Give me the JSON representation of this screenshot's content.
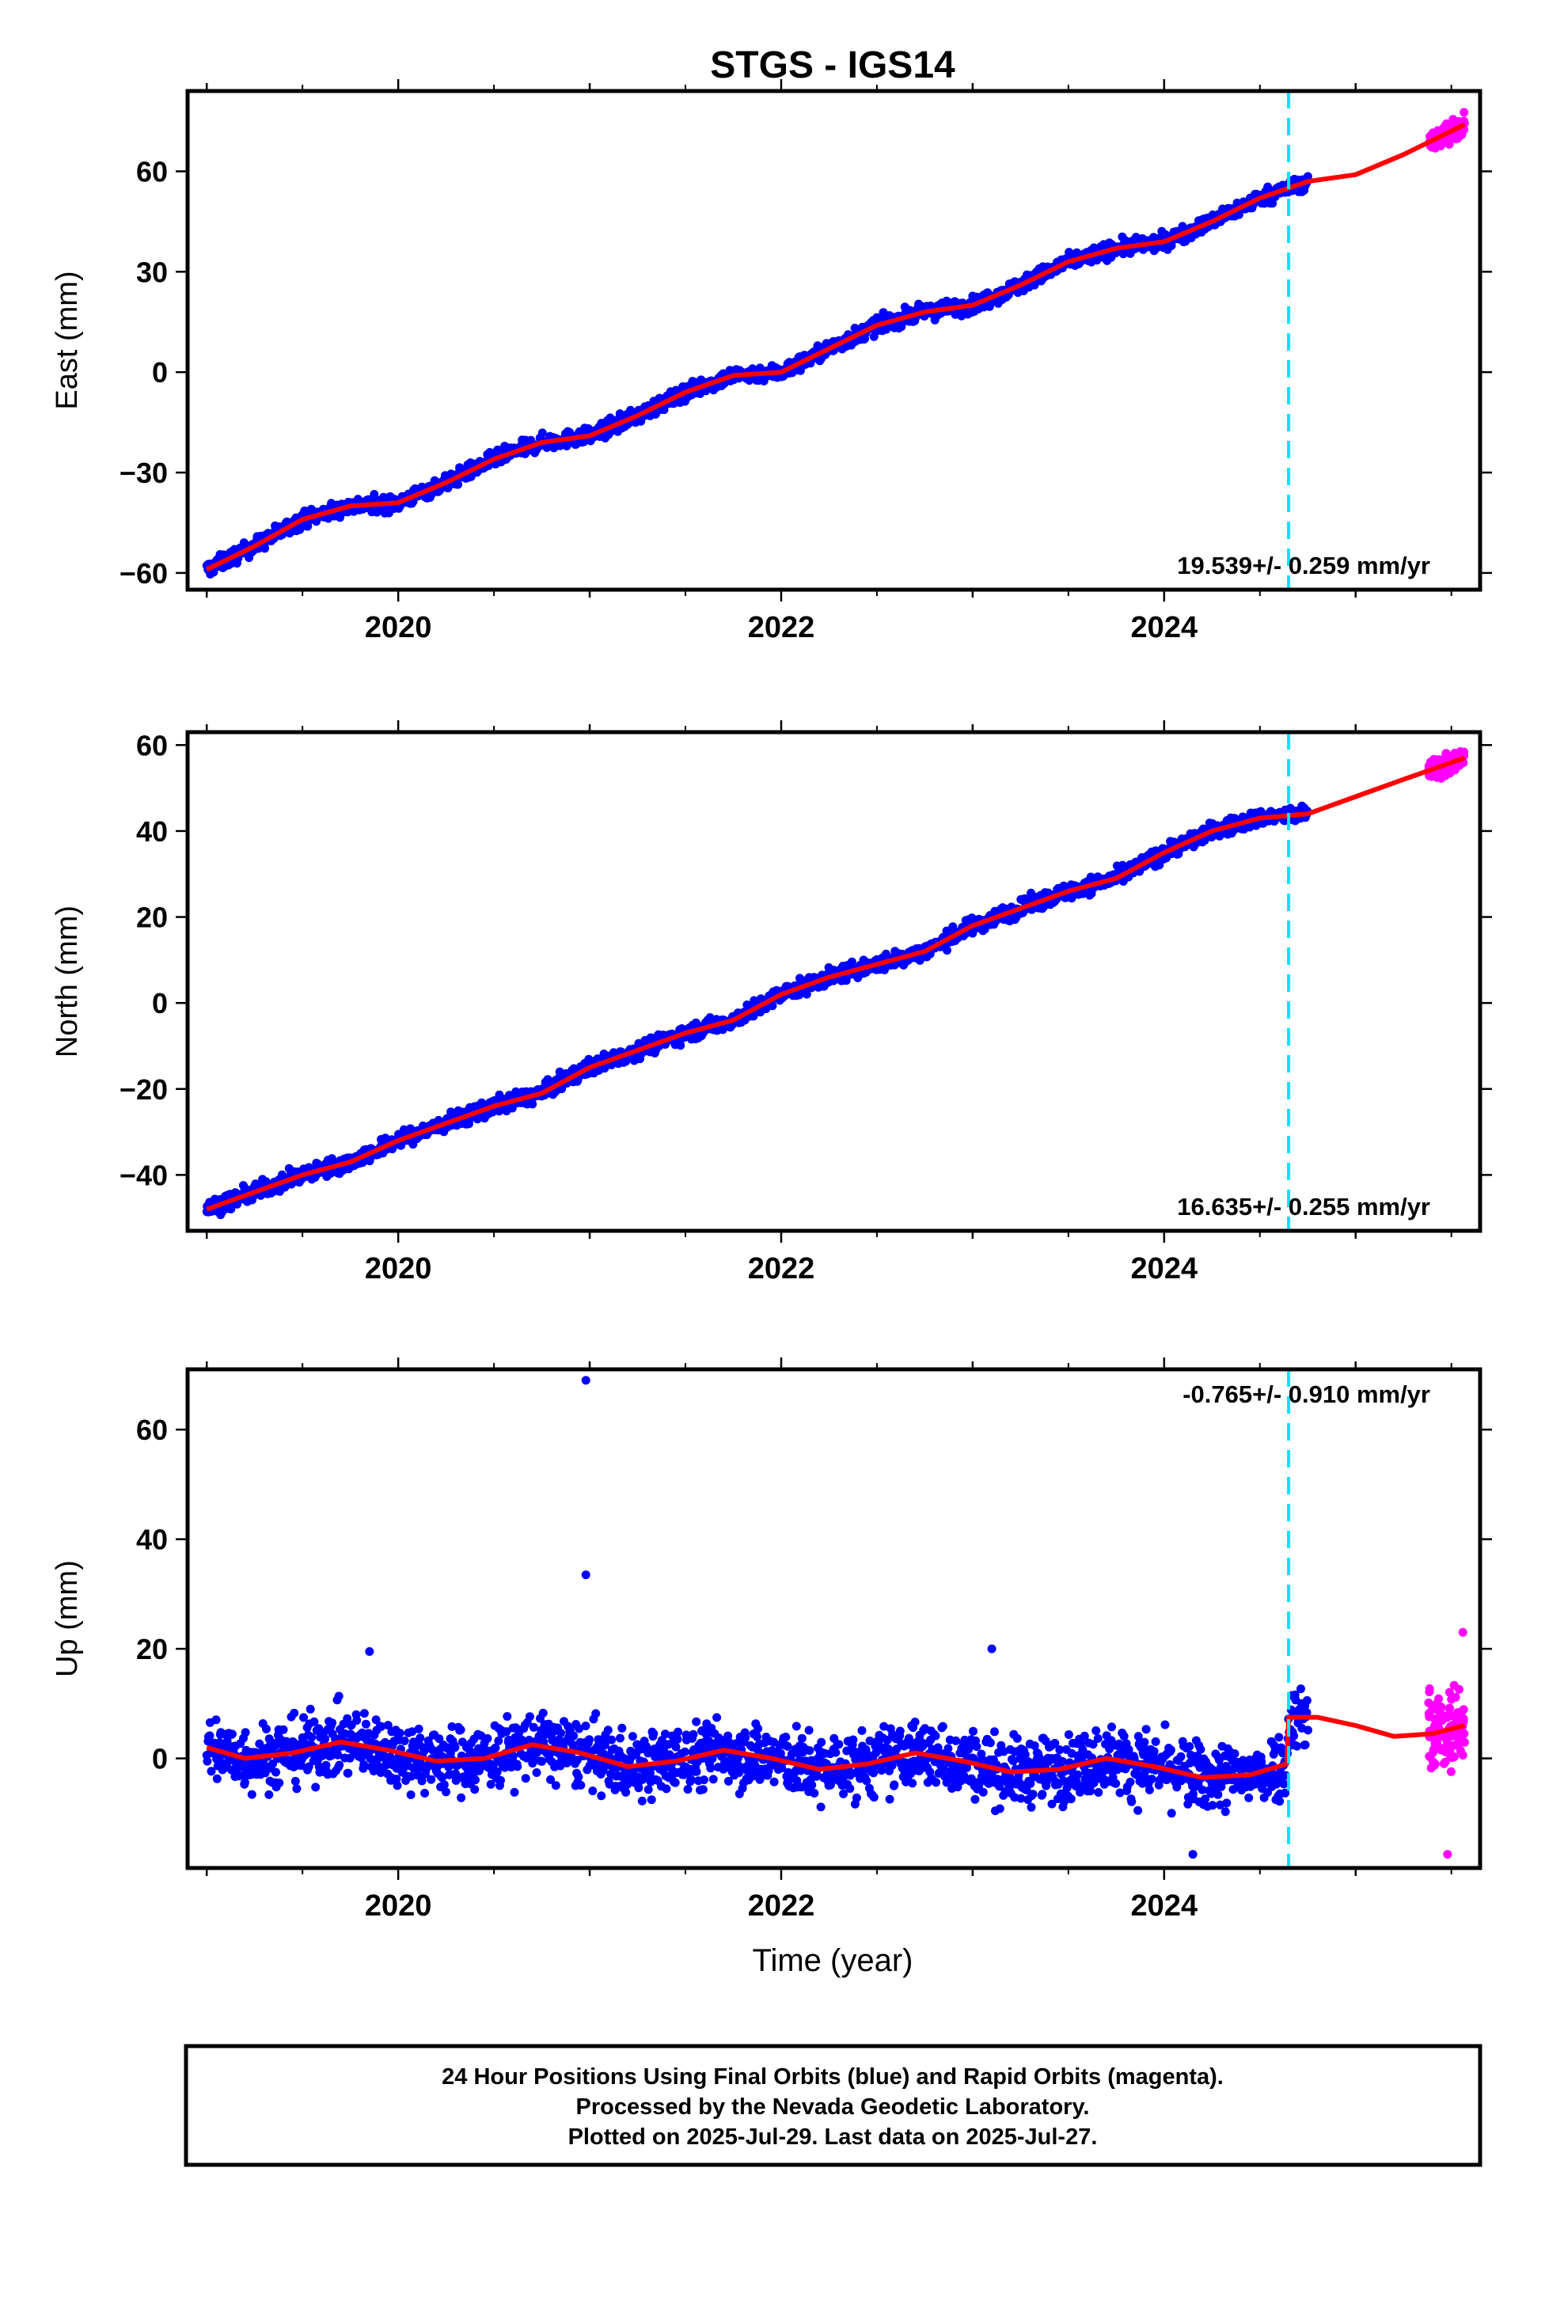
{
  "title": "STGS - IGS14",
  "xlabel": "Time (year)",
  "caption": [
    "24 Hour Positions Using Final Orbits (blue) and Rapid Orbits (magenta).",
    "Processed by the Nevada Geodetic Laboratory.",
    "Plotted on 2025-Jul-29. Last data on 2025-Jul-27."
  ],
  "colors": {
    "final": "#0000ff",
    "rapid": "#ff00ff",
    "model": "#ff0000",
    "equipment_change": "#00e5ff"
  },
  "chart_data": [
    {
      "type": "scatter",
      "component": "east",
      "ylabel": "East (mm)",
      "rate_label": "19.539+/- 0.259 mm/yr",
      "xlim": [
        2018.9,
        2025.65
      ],
      "ylim": [
        -65,
        84
      ],
      "yticks": [
        -60,
        -30,
        0,
        30,
        60
      ],
      "xticks": [
        2020,
        2022,
        2024
      ],
      "equipment_change_x": 2024.65,
      "final_range": [
        2019.0,
        2024.75
      ],
      "rapid_range": [
        2025.38,
        2025.57
      ],
      "final_noise": 1.6,
      "rapid_noise": 2.3,
      "model": [
        {
          "x": 2019.0,
          "y": -59
        },
        {
          "x": 2019.25,
          "y": -52
        },
        {
          "x": 2019.5,
          "y": -44
        },
        {
          "x": 2019.75,
          "y": -40
        },
        {
          "x": 2020.0,
          "y": -39
        },
        {
          "x": 2020.25,
          "y": -33
        },
        {
          "x": 2020.5,
          "y": -26
        },
        {
          "x": 2020.75,
          "y": -21
        },
        {
          "x": 2021.0,
          "y": -19
        },
        {
          "x": 2021.25,
          "y": -13
        },
        {
          "x": 2021.5,
          "y": -6
        },
        {
          "x": 2021.75,
          "y": -1
        },
        {
          "x": 2022.0,
          "y": 0
        },
        {
          "x": 2022.25,
          "y": 7
        },
        {
          "x": 2022.5,
          "y": 14
        },
        {
          "x": 2022.75,
          "y": 18
        },
        {
          "x": 2023.0,
          "y": 20
        },
        {
          "x": 2023.25,
          "y": 26
        },
        {
          "x": 2023.5,
          "y": 33
        },
        {
          "x": 2023.75,
          "y": 37
        },
        {
          "x": 2024.0,
          "y": 39
        },
        {
          "x": 2024.25,
          "y": 45
        },
        {
          "x": 2024.5,
          "y": 52
        },
        {
          "x": 2024.75,
          "y": 57
        },
        {
          "x": 2025.0,
          "y": 59
        },
        {
          "x": 2025.25,
          "y": 65
        },
        {
          "x": 2025.57,
          "y": 74
        }
      ]
    },
    {
      "type": "scatter",
      "component": "north",
      "ylabel": "North (mm)",
      "rate_label": "16.635+/- 0.255 mm/yr",
      "xlim": [
        2018.9,
        2025.65
      ],
      "ylim": [
        -53,
        63
      ],
      "yticks": [
        -40,
        -20,
        0,
        20,
        40,
        60
      ],
      "xticks": [
        2020,
        2022,
        2024
      ],
      "equipment_change_x": 2024.65,
      "final_range": [
        2019.0,
        2024.75
      ],
      "rapid_range": [
        2025.38,
        2025.57
      ],
      "final_noise": 1.3,
      "rapid_noise": 1.6,
      "model": [
        {
          "x": 2019.0,
          "y": -48
        },
        {
          "x": 2019.25,
          "y": -44
        },
        {
          "x": 2019.5,
          "y": -40
        },
        {
          "x": 2019.75,
          "y": -37
        },
        {
          "x": 2020.0,
          "y": -32
        },
        {
          "x": 2020.25,
          "y": -28
        },
        {
          "x": 2020.5,
          "y": -24
        },
        {
          "x": 2020.75,
          "y": -21
        },
        {
          "x": 2021.0,
          "y": -15
        },
        {
          "x": 2021.25,
          "y": -11
        },
        {
          "x": 2021.5,
          "y": -7
        },
        {
          "x": 2021.75,
          "y": -4
        },
        {
          "x": 2022.0,
          "y": 2
        },
        {
          "x": 2022.25,
          "y": 6
        },
        {
          "x": 2022.5,
          "y": 9
        },
        {
          "x": 2022.75,
          "y": 12
        },
        {
          "x": 2023.0,
          "y": 18
        },
        {
          "x": 2023.25,
          "y": 22
        },
        {
          "x": 2023.5,
          "y": 26
        },
        {
          "x": 2023.75,
          "y": 29
        },
        {
          "x": 2024.0,
          "y": 35
        },
        {
          "x": 2024.25,
          "y": 40
        },
        {
          "x": 2024.5,
          "y": 43
        },
        {
          "x": 2024.75,
          "y": 44
        },
        {
          "x": 2025.0,
          "y": 48
        },
        {
          "x": 2025.25,
          "y": 52
        },
        {
          "x": 2025.57,
          "y": 57
        }
      ]
    },
    {
      "type": "scatter",
      "component": "up",
      "ylabel": "Up (mm)",
      "rate_label": "-0.765+/- 0.910 mm/yr",
      "xlim": [
        2018.9,
        2025.65
      ],
      "ylim": [
        -20,
        71
      ],
      "yticks": [
        0,
        20,
        40,
        60
      ],
      "xticks": [
        2020,
        2022,
        2024
      ],
      "equipment_change_x": 2024.65,
      "final_range": [
        2019.0,
        2024.75
      ],
      "rapid_range": [
        2025.38,
        2025.57
      ],
      "final_noise": 4.2,
      "rapid_noise": 5.5,
      "outliers": [
        {
          "x": 2020.98,
          "y": 69
        },
        {
          "x": 2020.98,
          "y": 33.5
        },
        {
          "x": 2023.1,
          "y": 20
        },
        {
          "x": 2019.85,
          "y": 19.5
        },
        {
          "x": 2024.15,
          "y": -17.5
        },
        {
          "x": 2025.48,
          "y": -17.5
        },
        {
          "x": 2025.56,
          "y": 23
        }
      ],
      "model": [
        {
          "x": 2019.0,
          "y": 2
        },
        {
          "x": 2019.2,
          "y": 0
        },
        {
          "x": 2019.45,
          "y": 1
        },
        {
          "x": 2019.7,
          "y": 3
        },
        {
          "x": 2019.95,
          "y": 1.5
        },
        {
          "x": 2020.2,
          "y": -0.5
        },
        {
          "x": 2020.45,
          "y": 0
        },
        {
          "x": 2020.7,
          "y": 2.5
        },
        {
          "x": 2020.95,
          "y": 1
        },
        {
          "x": 2021.2,
          "y": -1.5
        },
        {
          "x": 2021.45,
          "y": -0.5
        },
        {
          "x": 2021.7,
          "y": 1.5
        },
        {
          "x": 2021.95,
          "y": 0
        },
        {
          "x": 2022.2,
          "y": -2
        },
        {
          "x": 2022.45,
          "y": -1
        },
        {
          "x": 2022.7,
          "y": 1
        },
        {
          "x": 2022.95,
          "y": -0.5
        },
        {
          "x": 2023.2,
          "y": -2.5
        },
        {
          "x": 2023.45,
          "y": -2
        },
        {
          "x": 2023.7,
          "y": 0
        },
        {
          "x": 2023.95,
          "y": -1.5
        },
        {
          "x": 2024.2,
          "y": -3.5
        },
        {
          "x": 2024.45,
          "y": -3
        },
        {
          "x": 2024.64,
          "y": -1
        },
        {
          "x": 2024.65,
          "y": 7.5
        },
        {
          "x": 2024.8,
          "y": 7.5
        },
        {
          "x": 2025.0,
          "y": 6
        },
        {
          "x": 2025.2,
          "y": 4
        },
        {
          "x": 2025.4,
          "y": 4.5
        },
        {
          "x": 2025.57,
          "y": 6
        }
      ]
    }
  ]
}
